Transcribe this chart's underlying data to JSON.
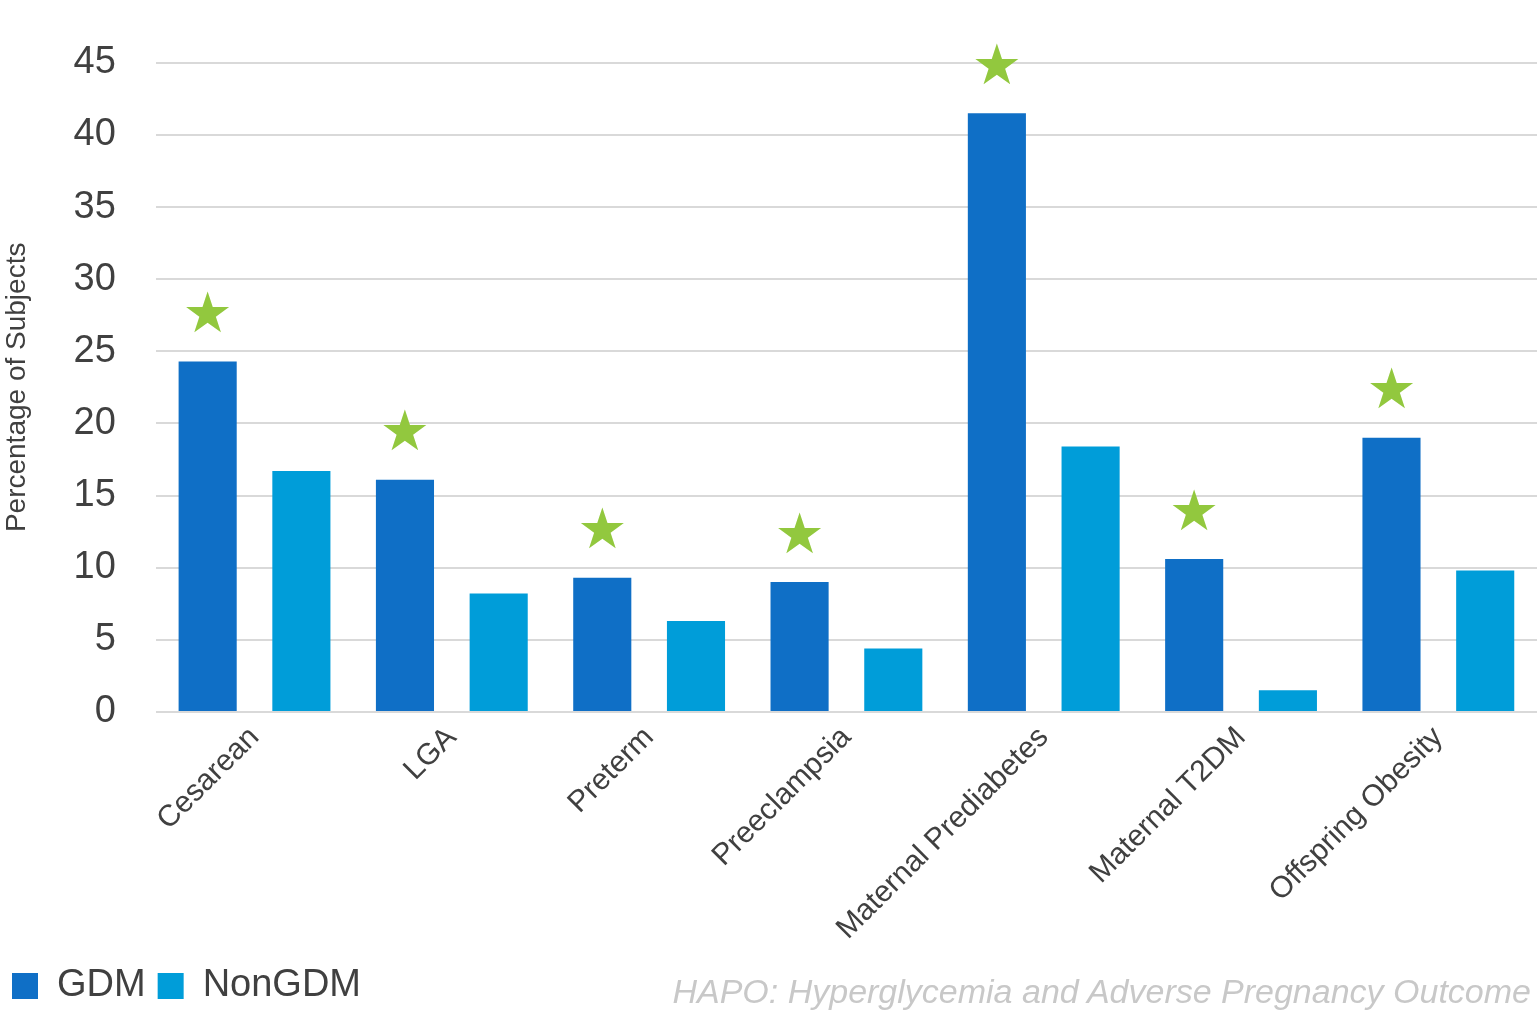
{
  "chart_data": {
    "type": "bar",
    "ylabel": "Percentage of Subjects",
    "categories": [
      "Cesarean",
      "LGA",
      "Preterm",
      "Preeclampsia",
      "Maternal Prediabetes",
      "Maternal T2DM",
      "Offspring Obesity"
    ],
    "series": [
      {
        "name": "GDM",
        "color": "#0f6fc6",
        "values": [
          24.3,
          16.1,
          9.3,
          9.0,
          41.5,
          10.6,
          19.0
        ]
      },
      {
        "name": "NonGDM",
        "color": "#009dd9",
        "values": [
          16.7,
          8.2,
          6.3,
          4.4,
          18.4,
          1.5,
          9.8
        ]
      }
    ],
    "ylim": [
      0,
      45
    ],
    "yticks": [
      0,
      5,
      10,
      15,
      20,
      25,
      30,
      35,
      40,
      45
    ],
    "grid": "y",
    "legend": "bottom left",
    "annotations": [
      "★",
      "★",
      "★",
      "★",
      "★",
      "★",
      "★",
      "HAPO: Hyperglycemia and Adverse Pregnancy Outcome"
    ]
  }
}
